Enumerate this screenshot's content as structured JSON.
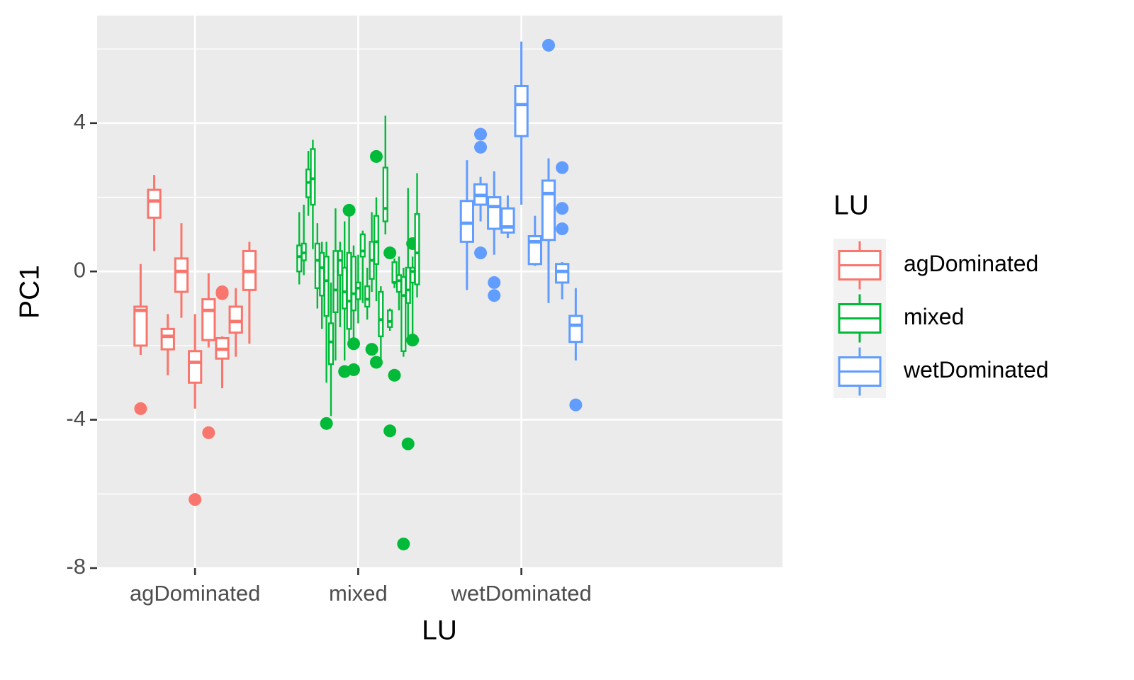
{
  "chart_data": {
    "type": "boxplot",
    "x_label": "LU",
    "y_label": "PC1",
    "categories": [
      "agDominated",
      "mixed",
      "wetDominated"
    ],
    "ylim": [
      -8,
      6.9
    ],
    "yticks": [
      -8,
      -4,
      0,
      4
    ],
    "minor_yticks": [
      -6,
      -2,
      2,
      6
    ],
    "grid": true,
    "legend_title": "LU",
    "legend_position": "right",
    "series": [
      {
        "name": "agDominated",
        "color": "#F8766D",
        "boxes": [
          {
            "low": -2.25,
            "q1": -2.0,
            "median": -1.05,
            "q3": -0.95,
            "high": 0.2,
            "outliers": [
              -3.7
            ]
          },
          {
            "low": 0.55,
            "q1": 1.45,
            "median": 1.9,
            "q3": 2.2,
            "high": 2.6
          },
          {
            "low": -2.8,
            "q1": -2.1,
            "median": -1.75,
            "q3": -1.55,
            "high": -1.15
          },
          {
            "low": -1.25,
            "q1": -0.55,
            "median": 0,
            "q3": 0.35,
            "high": 1.3
          },
          {
            "low": -3.7,
            "q1": -3.0,
            "median": -2.45,
            "q3": -2.15,
            "high": -1.15,
            "outliers": [
              -6.15
            ]
          },
          {
            "low": -2.05,
            "q1": -1.85,
            "median": -1.05,
            "q3": -0.75,
            "high": -0.05,
            "outliers": [
              -4.35
            ]
          },
          {
            "low": -3.15,
            "q1": -2.35,
            "median": -2.1,
            "q3": -1.8,
            "high": -1.75,
            "outliers": [
              -0.55,
              -0.6
            ]
          },
          {
            "low": -2.3,
            "q1": -1.65,
            "median": -1.35,
            "q3": -0.95,
            "high": -0.45
          },
          {
            "low": -1.95,
            "q1": -0.5,
            "median": 0,
            "q3": 0.55,
            "high": 0.8
          }
        ]
      },
      {
        "name": "mixed",
        "color": "#00BA38",
        "boxes": [
          {
            "low": -0.35,
            "q1": 0,
            "median": 0.4,
            "q3": 0.7,
            "high": 1.6
          },
          {
            "low": -0.1,
            "q1": 0.3,
            "median": 0.5,
            "q3": 0.75,
            "high": 1.8
          },
          {
            "low": 1.5,
            "q1": 2.0,
            "median": 2.4,
            "q3": 2.75,
            "high": 3.25
          },
          {
            "low": 0.6,
            "q1": 1.8,
            "median": 2.5,
            "q3": 3.3,
            "high": 3.55
          },
          {
            "low": -1.0,
            "q1": -0.45,
            "median": 0.3,
            "q3": 0.75,
            "high": 1.3
          },
          {
            "low": -1.55,
            "q1": -0.65,
            "median": 0.1,
            "q3": 0.5,
            "high": 0.8
          },
          {
            "low": -3.0,
            "q1": -1.2,
            "median": -0.25,
            "q3": 0.4,
            "high": 0.8,
            "outliers": [
              -4.1
            ]
          },
          {
            "low": -3.9,
            "q1": -2.5,
            "median": -1.9,
            "q3": -1.4,
            "high": -0.3
          },
          {
            "low": -2.4,
            "q1": -1.1,
            "median": -0.5,
            "q3": 0.55,
            "high": 1.7
          },
          {
            "low": -1.5,
            "q1": -0.1,
            "median": 0.3,
            "q3": 0.55,
            "high": 0.8
          },
          {
            "low": -2.4,
            "q1": -1.0,
            "median": -0.55,
            "q3": 0.1,
            "high": 1.35,
            "outliers": [
              -2.7
            ]
          },
          {
            "low": -2.0,
            "q1": -1.55,
            "median": -0.8,
            "q3": 0.5,
            "high": 1.7,
            "outliers": [
              1.65
            ]
          },
          {
            "low": -1.8,
            "q1": -1.05,
            "median": -0.6,
            "q3": 0.4,
            "high": 0.7,
            "outliers": [
              -2.65,
              -1.95
            ]
          },
          {
            "low": -1.4,
            "q1": -0.75,
            "median": -0.45,
            "q3": -0.3,
            "high": 0.45
          },
          {
            "low": -0.85,
            "q1": 0.4,
            "median": 0.55,
            "q3": 1.0,
            "high": 1.1
          },
          {
            "low": -1.3,
            "q1": -0.95,
            "median": -0.75,
            "q3": -0.4,
            "high": 0.1
          },
          {
            "low": -0.55,
            "q1": -0.2,
            "median": 0.3,
            "q3": 0.8,
            "high": 1.6,
            "outliers": [
              -2.1
            ]
          },
          {
            "low": -0.8,
            "q1": 0.2,
            "median": 0.8,
            "q3": 1.5,
            "high": 2.0,
            "outliers": [
              3.1,
              -2.45
            ]
          },
          {
            "low": -2.55,
            "q1": -1.75,
            "median": -1.3,
            "q3": -0.55,
            "high": -0.4
          },
          {
            "low": 1.0,
            "q1": 1.35,
            "median": 1.7,
            "q3": 2.8,
            "high": 4.2
          },
          {
            "low": -1.6,
            "q1": -1.5,
            "median": -1.35,
            "q3": -1.05,
            "high": -1.0,
            "outliers": [
              -4.3,
              0.5
            ]
          },
          {
            "low": -0.45,
            "q1": -0.3,
            "median": -0.3,
            "q3": 0.25,
            "high": 0.35,
            "outliers": [
              -2.8
            ]
          },
          {
            "low": -1.05,
            "q1": -0.55,
            "median": -0.25,
            "q3": -0.1,
            "high": 0.4
          },
          {
            "low": -2.3,
            "q1": -2.15,
            "median": -0.65,
            "q3": -0.15,
            "high": 0.1,
            "outliers": [
              -7.35
            ]
          },
          {
            "low": -1.8,
            "q1": -0.85,
            "median": -0.5,
            "q3": 0.1,
            "high": 2.25,
            "outliers": [
              -4.65
            ]
          },
          {
            "low": -1.8,
            "q1": -0.3,
            "median": 0.0,
            "q3": 0.1,
            "high": 0.4,
            "outliers": [
              0.75,
              -1.85
            ]
          },
          {
            "low": -0.7,
            "q1": -0.35,
            "median": 0.5,
            "q3": 1.55,
            "high": 2.65
          }
        ]
      },
      {
        "name": "wetDominated",
        "color": "#619CFF",
        "boxes": [
          {
            "low": -0.5,
            "q1": 0.8,
            "median": 1.3,
            "q3": 1.9,
            "high": 3.0
          },
          {
            "low": 1.35,
            "q1": 1.8,
            "median": 2.05,
            "q3": 2.35,
            "high": 2.55,
            "outliers": [
              3.7,
              3.35,
              0.5
            ]
          },
          {
            "low": 0.45,
            "q1": 1.15,
            "median": 1.75,
            "q3": 2.0,
            "high": 2.7,
            "outliers": [
              -0.3,
              -0.65
            ]
          },
          {
            "low": 0.9,
            "q1": 1.05,
            "median": 1.2,
            "q3": 1.7,
            "high": 2.05
          },
          {
            "low": 1.8,
            "q1": 3.65,
            "median": 4.5,
            "q3": 5.0,
            "high": 6.2
          },
          {
            "low": 0.15,
            "q1": 0.2,
            "median": 0.8,
            "q3": 0.95,
            "high": 1.5
          },
          {
            "low": -0.85,
            "q1": 0.85,
            "median": 2.1,
            "q3": 2.45,
            "high": 3.05,
            "outliers": [
              6.1
            ]
          },
          {
            "low": -0.75,
            "q1": -0.3,
            "median": 0.0,
            "q3": 0.2,
            "high": 0.25,
            "outliers": [
              2.8,
              1.7,
              1.15
            ]
          },
          {
            "low": -2.4,
            "q1": -1.9,
            "median": -1.45,
            "q3": -1.2,
            "high": -0.45,
            "outliers": [
              -3.6
            ]
          }
        ]
      }
    ]
  }
}
